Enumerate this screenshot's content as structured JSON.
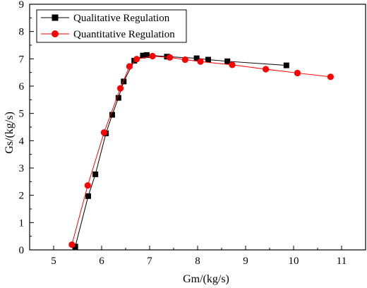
{
  "chart_data": {
    "type": "line",
    "title": "",
    "xlabel": "Gm/(kg/s)",
    "ylabel": "Gs/(kg/s)",
    "xlim": [
      4.5,
      11.5
    ],
    "ylim": [
      0,
      9
    ],
    "x_ticks": [
      "5",
      "6",
      "7",
      "8",
      "9",
      "10",
      "11"
    ],
    "y_ticks": [
      "0",
      "1",
      "2",
      "3",
      "4",
      "5",
      "6",
      "7",
      "8",
      "9"
    ],
    "grid": false,
    "legend_position": "top-left",
    "series": [
      {
        "name": "Qualitative Regulation",
        "color": "#000000",
        "marker": "square",
        "points": [
          [
            5.45,
            0.12
          ],
          [
            5.72,
            1.97
          ],
          [
            5.87,
            2.77
          ],
          [
            6.09,
            4.27
          ],
          [
            6.22,
            4.95
          ],
          [
            6.35,
            5.57
          ],
          [
            6.46,
            6.17
          ],
          [
            6.68,
            6.93
          ],
          [
            6.86,
            7.12
          ],
          [
            6.94,
            7.14
          ],
          [
            7.36,
            7.08
          ],
          [
            7.98,
            7.02
          ],
          [
            8.22,
            6.97
          ],
          [
            8.62,
            6.91
          ],
          [
            9.85,
            6.76
          ]
        ]
      },
      {
        "name": "Quantitative Regulation",
        "color": "#ff0000",
        "marker": "circle",
        "points": [
          [
            5.38,
            0.19
          ],
          [
            5.71,
            2.36
          ],
          [
            6.05,
            4.3
          ],
          [
            6.39,
            5.92
          ],
          [
            6.58,
            6.72
          ],
          [
            6.73,
            6.99
          ],
          [
            7.06,
            7.1
          ],
          [
            7.42,
            7.05
          ],
          [
            7.74,
            6.97
          ],
          [
            8.06,
            6.9
          ],
          [
            8.72,
            6.78
          ],
          [
            9.42,
            6.62
          ],
          [
            10.08,
            6.48
          ],
          [
            10.77,
            6.34
          ]
        ]
      }
    ]
  }
}
